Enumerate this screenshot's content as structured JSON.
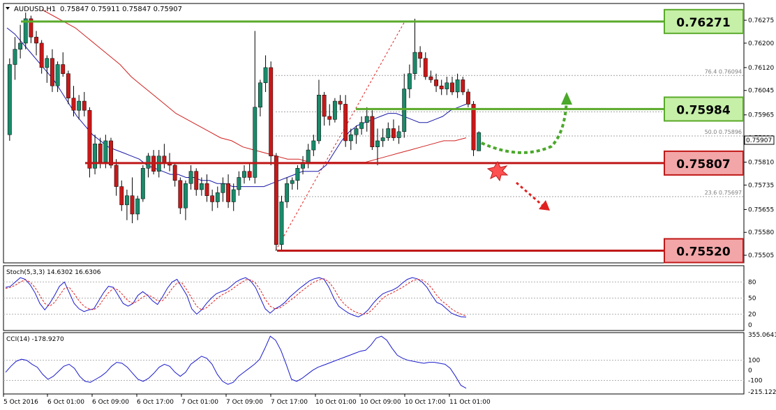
{
  "header": {
    "symbol": "AUDUSD,H1",
    "ohlc": "0.75847 0.75911 0.75847 0.75907"
  },
  "chart_data": {
    "type": "candlestick",
    "price_range": [
      0.7548,
      0.7633
    ],
    "y_ticks": [
      "0.76275",
      "0.76200",
      "0.76120",
      "0.76045",
      "0.75965",
      "0.75890",
      "0.75810",
      "0.75735",
      "0.75655",
      "0.75580",
      "0.75505"
    ],
    "x_ticks": [
      "5 Oct 2016",
      "6 Oct 01:00",
      "6 Oct 09:00",
      "6 Oct 17:00",
      "7 Oct 01:00",
      "7 Oct 09:00",
      "7 Oct 17:00",
      "10 Oct 01:00",
      "10 Oct 09:00",
      "10 Oct 17:00",
      "11 Oct 01:00"
    ],
    "current_price": "0.75907",
    "levels": [
      {
        "value": 0.76271,
        "label": "0.76271",
        "color": "#5aaa2a",
        "box_fill": "#c6efa8"
      },
      {
        "value": 0.75984,
        "label": "0.75984",
        "color": "#5aaa2a",
        "box_fill": "#c6efa8"
      },
      {
        "value": 0.75807,
        "label": "0.75807",
        "color": "#c01818",
        "box_fill": "#f3a6a8"
      },
      {
        "value": 0.7552,
        "label": "0.75520",
        "color": "#c01818",
        "box_fill": "#f3a6a8"
      }
    ],
    "fibonacci": [
      {
        "label": "76.4  0.76094",
        "value": 0.76094
      },
      {
        "label": "50.0  0.75896",
        "value": 0.75896
      },
      {
        "label": "23.6  0.75697",
        "value": 0.75697
      }
    ],
    "candles": [
      [
        0.759,
        0.7615,
        0.7588,
        0.7613
      ],
      [
        0.7613,
        0.7622,
        0.7608,
        0.7618
      ],
      [
        0.7618,
        0.7626,
        0.7615,
        0.762
      ],
      [
        0.762,
        0.763,
        0.7618,
        0.7628
      ],
      [
        0.7628,
        0.7629,
        0.762,
        0.7622
      ],
      [
        0.7622,
        0.7624,
        0.7616,
        0.762
      ],
      [
        0.762,
        0.7621,
        0.761,
        0.7612
      ],
      [
        0.7612,
        0.7616,
        0.7607,
        0.7615
      ],
      [
        0.7615,
        0.7618,
        0.7604,
        0.7606
      ],
      [
        0.7606,
        0.7614,
        0.7604,
        0.7613
      ],
      [
        0.7613,
        0.7617,
        0.7609,
        0.761
      ],
      [
        0.761,
        0.7611,
        0.76,
        0.7602
      ],
      [
        0.7602,
        0.7606,
        0.7596,
        0.7598
      ],
      [
        0.7598,
        0.7603,
        0.7595,
        0.7601
      ],
      [
        0.7601,
        0.7604,
        0.7596,
        0.7598
      ],
      [
        0.7598,
        0.7599,
        0.7576,
        0.7579
      ],
      [
        0.7579,
        0.759,
        0.7577,
        0.7587
      ],
      [
        0.7587,
        0.7589,
        0.7579,
        0.7581
      ],
      [
        0.7581,
        0.759,
        0.7579,
        0.7588
      ],
      [
        0.7588,
        0.7589,
        0.7579,
        0.758
      ],
      [
        0.758,
        0.7582,
        0.757,
        0.7573
      ],
      [
        0.7573,
        0.7575,
        0.7565,
        0.7567
      ],
      [
        0.7567,
        0.7572,
        0.7562,
        0.757
      ],
      [
        0.757,
        0.7576,
        0.7561,
        0.7564
      ],
      [
        0.7564,
        0.757,
        0.7562,
        0.7569
      ],
      [
        0.7569,
        0.758,
        0.7568,
        0.7579
      ],
      [
        0.7579,
        0.7584,
        0.7576,
        0.7583
      ],
      [
        0.7583,
        0.7585,
        0.7577,
        0.7578
      ],
      [
        0.7578,
        0.7585,
        0.7576,
        0.7583
      ],
      [
        0.7583,
        0.7587,
        0.7579,
        0.7581
      ],
      [
        0.7581,
        0.7584,
        0.7578,
        0.758
      ],
      [
        0.758,
        0.7581,
        0.7573,
        0.7575
      ],
      [
        0.7575,
        0.7576,
        0.7564,
        0.7566
      ],
      [
        0.7566,
        0.7575,
        0.7562,
        0.7574
      ],
      [
        0.7574,
        0.758,
        0.7572,
        0.7578
      ],
      [
        0.7578,
        0.7579,
        0.757,
        0.7572
      ],
      [
        0.7572,
        0.7576,
        0.757,
        0.7574
      ],
      [
        0.7574,
        0.7577,
        0.7568,
        0.757
      ],
      [
        0.757,
        0.7572,
        0.7565,
        0.7568
      ],
      [
        0.7568,
        0.7573,
        0.7566,
        0.7571
      ],
      [
        0.7571,
        0.7576,
        0.7568,
        0.7574
      ],
      [
        0.7574,
        0.7577,
        0.7566,
        0.7568
      ],
      [
        0.7568,
        0.7574,
        0.7565,
        0.7572
      ],
      [
        0.7572,
        0.7578,
        0.757,
        0.7576
      ],
      [
        0.7576,
        0.758,
        0.7574,
        0.7578
      ],
      [
        0.7578,
        0.7581,
        0.7575,
        0.7576
      ],
      [
        0.7576,
        0.7624,
        0.7574,
        0.7599
      ],
      [
        0.7599,
        0.7608,
        0.7596,
        0.7607
      ],
      [
        0.7607,
        0.7616,
        0.7604,
        0.7612
      ],
      [
        0.7612,
        0.7614,
        0.758,
        0.7583
      ],
      [
        0.7583,
        0.7584,
        0.7552,
        0.7554
      ],
      [
        0.7554,
        0.757,
        0.7552,
        0.7568
      ],
      [
        0.7568,
        0.7576,
        0.7566,
        0.7574
      ],
      [
        0.7574,
        0.7576,
        0.7572,
        0.7575
      ],
      [
        0.7575,
        0.758,
        0.7572,
        0.7579
      ],
      [
        0.7579,
        0.7583,
        0.7577,
        0.7581
      ],
      [
        0.7581,
        0.7587,
        0.7579,
        0.7585
      ],
      [
        0.7585,
        0.759,
        0.7583,
        0.7588
      ],
      [
        0.7588,
        0.7608,
        0.7587,
        0.7603
      ],
      [
        0.7603,
        0.7604,
        0.7593,
        0.7596
      ],
      [
        0.7596,
        0.76,
        0.7593,
        0.7595
      ],
      [
        0.7595,
        0.7602,
        0.7594,
        0.7601
      ],
      [
        0.7601,
        0.7603,
        0.7598,
        0.76
      ],
      [
        0.76,
        0.7603,
        0.7586,
        0.7588
      ],
      [
        0.7588,
        0.7592,
        0.7585,
        0.759
      ],
      [
        0.759,
        0.7593,
        0.7587,
        0.7592
      ],
      [
        0.7592,
        0.7596,
        0.759,
        0.7594
      ],
      [
        0.7594,
        0.7599,
        0.7591,
        0.7596
      ],
      [
        0.7596,
        0.7598,
        0.7585,
        0.7586
      ],
      [
        0.7586,
        0.7592,
        0.758,
        0.7588
      ],
      [
        0.7588,
        0.7592,
        0.7586,
        0.7589
      ],
      [
        0.7589,
        0.7594,
        0.7588,
        0.7592
      ],
      [
        0.7592,
        0.7595,
        0.7588,
        0.7589
      ],
      [
        0.7589,
        0.7593,
        0.7587,
        0.7591
      ],
      [
        0.7591,
        0.761,
        0.7589,
        0.7605
      ],
      [
        0.7605,
        0.7613,
        0.7602,
        0.761
      ],
      [
        0.761,
        0.7628,
        0.7608,
        0.7617
      ],
      [
        0.7617,
        0.7619,
        0.7612,
        0.7615
      ],
      [
        0.7615,
        0.7617,
        0.7608,
        0.7609
      ],
      [
        0.7609,
        0.7611,
        0.7607,
        0.7608
      ],
      [
        0.7608,
        0.761,
        0.7604,
        0.7606
      ],
      [
        0.7606,
        0.7608,
        0.7603,
        0.7605
      ],
      [
        0.7605,
        0.7609,
        0.7603,
        0.7607
      ],
      [
        0.7607,
        0.7609,
        0.7603,
        0.7604
      ],
      [
        0.7604,
        0.761,
        0.7602,
        0.7608
      ],
      [
        0.7608,
        0.7609,
        0.7603,
        0.7604
      ],
      [
        0.7604,
        0.7605,
        0.7599,
        0.76
      ],
      [
        0.76,
        0.7601,
        0.7583,
        0.7585
      ],
      [
        0.75847,
        0.75911,
        0.75847,
        0.75907
      ]
    ],
    "ma_fast": [
      0.7625,
      0.7623,
      0.762,
      0.7617,
      0.7614,
      0.7611,
      0.7608,
      0.7604,
      0.76,
      0.7596,
      0.7593,
      0.759,
      0.7588,
      0.7586,
      0.7585,
      0.7584,
      0.7583,
      0.7582,
      0.758,
      0.7579,
      0.7578,
      0.7577,
      0.7577,
      0.7576,
      0.7576,
      0.7575,
      0.7575,
      0.7574,
      0.7574,
      0.7573,
      0.7573,
      0.7573,
      0.7573,
      0.7573,
      0.7574,
      0.7575,
      0.7576,
      0.7577,
      0.7578,
      0.7578,
      0.7578,
      0.758,
      0.7584,
      0.7588,
      0.7591,
      0.7593,
      0.7594,
      0.7595,
      0.7596,
      0.7597,
      0.7597,
      0.7596,
      0.7595,
      0.7594,
      0.7594,
      0.7595,
      0.7596,
      0.7598,
      0.7599,
      0.76
    ],
    "ma_slow": [
      0.7631,
      0.7629,
      0.7627,
      0.7625,
      0.7622,
      0.7619,
      0.7616,
      0.7613,
      0.7609,
      0.7606,
      0.7603,
      0.76,
      0.7597,
      0.7595,
      0.7593,
      0.7591,
      0.7589,
      0.7588,
      0.7586,
      0.7585,
      0.7584,
      0.7583,
      0.7582,
      0.7582,
      0.7581,
      0.7581,
      0.7581,
      0.7581,
      0.7581,
      0.7581,
      0.7582,
      0.7583,
      0.7584,
      0.7585,
      0.7586,
      0.7587,
      0.7588,
      0.7588,
      0.7589
    ],
    "stoch": {
      "title": "Stoch(5,3,3) 14.6302 16.6306",
      "levels": [
        "80",
        "50",
        "20",
        "0"
      ],
      "main": [
        70,
        72,
        80,
        88,
        85,
        75,
        60,
        40,
        28,
        40,
        55,
        72,
        80,
        60,
        40,
        30,
        25,
        28,
        30,
        45,
        60,
        72,
        70,
        55,
        40,
        35,
        40,
        55,
        62,
        55,
        45,
        38,
        52,
        68,
        80,
        85,
        70,
        55,
        30,
        20,
        28,
        40,
        50,
        58,
        62,
        65,
        72,
        80,
        85,
        88,
        82,
        70,
        50,
        30,
        22,
        30,
        35,
        42,
        52,
        60,
        68,
        75,
        82,
        86,
        88,
        85,
        70,
        50,
        35,
        28,
        22,
        18,
        15,
        20,
        28,
        40,
        50,
        58,
        62,
        65,
        70,
        78,
        85,
        88,
        86,
        80,
        70,
        55,
        42,
        38,
        30,
        22,
        18,
        15,
        14.6
      ],
      "signal": [
        68,
        70,
        74,
        80,
        84,
        80,
        70,
        55,
        40,
        35,
        42,
        55,
        68,
        70,
        58,
        45,
        35,
        30,
        28,
        35,
        48,
        60,
        68,
        65,
        55,
        45,
        40,
        45,
        52,
        56,
        52,
        45,
        45,
        55,
        68,
        78,
        78,
        65,
        50,
        35,
        28,
        32,
        40,
        48,
        55,
        60,
        65,
        72,
        78,
        84,
        84,
        78,
        65,
        48,
        35,
        30,
        32,
        38,
        45,
        52,
        60,
        67,
        74,
        80,
        84,
        86,
        80,
        68,
        52,
        40,
        32,
        26,
        22,
        20,
        22,
        30,
        40,
        50,
        56,
        60,
        65,
        70,
        76,
        82,
        85,
        84,
        78,
        68,
        55,
        45,
        38,
        30,
        24,
        20,
        16.6
      ]
    },
    "cci": {
      "title": "CCI(14) -178.9270",
      "ticks": [
        "355.0641",
        "100",
        "0",
        "-100",
        "-215.1229"
      ],
      "values": [
        -20,
        40,
        90,
        110,
        100,
        60,
        30,
        -40,
        -90,
        -60,
        -10,
        40,
        60,
        20,
        -60,
        -110,
        -120,
        -90,
        -60,
        -20,
        40,
        80,
        70,
        30,
        -30,
        -90,
        -110,
        -80,
        -30,
        30,
        60,
        40,
        -20,
        -60,
        -20,
        60,
        100,
        140,
        120,
        60,
        -40,
        -110,
        -140,
        -120,
        -60,
        -20,
        20,
        60,
        110,
        220,
        340,
        300,
        200,
        60,
        -90,
        -110,
        -80,
        -40,
        0,
        30,
        50,
        70,
        90,
        110,
        130,
        150,
        170,
        190,
        200,
        250,
        320,
        340,
        300,
        220,
        150,
        120,
        100,
        90,
        80,
        70,
        80,
        80,
        70,
        60,
        20,
        -60,
        -150,
        -179
      ]
    }
  }
}
